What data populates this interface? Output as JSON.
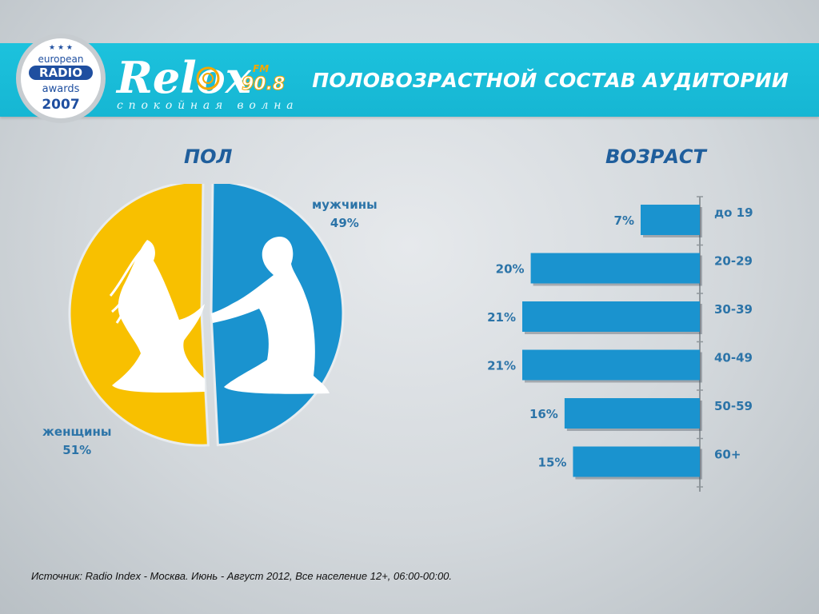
{
  "header": {
    "title": "ПОЛОВОЗРАСТНОЙ СОСТАВ АУДИТОРИИ"
  },
  "badge": {
    "line1": "european",
    "line2": "RADIO",
    "line3": "awards",
    "year": "2007"
  },
  "logo": {
    "name": "Relox",
    "fm": "FM",
    "frequency": "90.8",
    "tagline": "спокойная волна"
  },
  "colors": {
    "banner": "#16b6d3",
    "male": "#1a93cf",
    "female": "#f8c000",
    "title_text": "#1f5e9c",
    "label_text": "#2c74a8",
    "bar": "#1a93cf"
  },
  "chart_data": [
    {
      "type": "pie",
      "title": "ПОЛ",
      "slices": [
        {
          "label": "мужчины",
          "value": 49,
          "value_label": "49%",
          "color": "#1a93cf"
        },
        {
          "label": "женщины",
          "value": 51,
          "value_label": "51%",
          "color": "#f8c000"
        }
      ]
    },
    {
      "type": "bar",
      "orientation": "horizontal",
      "title": "ВОЗРАСТ",
      "categories": [
        "до 19",
        "20-29",
        "30-39",
        "40-49",
        "50-59",
        "60+"
      ],
      "values": [
        7,
        20,
        21,
        21,
        16,
        15
      ],
      "value_labels": [
        "7%",
        "20%",
        "21%",
        "21%",
        "16%",
        "15%"
      ],
      "xlim": [
        0,
        21
      ]
    }
  ],
  "source": "Источник: Radio Index - Москва. Июнь - Август 2012, Все население 12+, 06:00-00:00."
}
